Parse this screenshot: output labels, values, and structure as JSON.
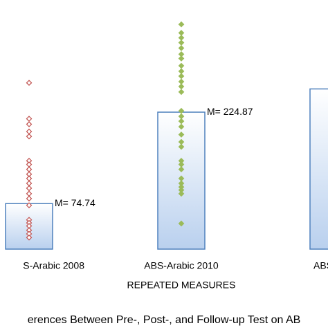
{
  "chart_data": {
    "type": "bar",
    "title": "erences Between Pre-, Post-, and Follow-up Test on AB",
    "x_label": "REPEATED MEASURES",
    "categories": [
      "S-Arabic 2008",
      "ABS-Arabic 2010",
      "ABS-Ara"
    ],
    "values": [
      74.74,
      224.87,
      263
    ],
    "value_labels": [
      "M= 74.74",
      "M= 224.87",
      null
    ],
    "color": "#4f81bd",
    "ylim": [
      0,
      409
    ],
    "scatter_values": [
      [
        273,
        214,
        205,
        193,
        185,
        145,
        139,
        131,
        123,
        116,
        108,
        100,
        91,
        83,
        72,
        48,
        43,
        38,
        31,
        25,
        19
      ],
      [
        369,
        355,
        347,
        339,
        330,
        320,
        313,
        301,
        292,
        284,
        275,
        267,
        258,
        227,
        218,
        210,
        201,
        188,
        176,
        168,
        145,
        139,
        131,
        116,
        108,
        102,
        97,
        91,
        42
      ],
      []
    ],
    "scatter_colors": [
      "#c0504d",
      "#9bbb59",
      null
    ]
  }
}
